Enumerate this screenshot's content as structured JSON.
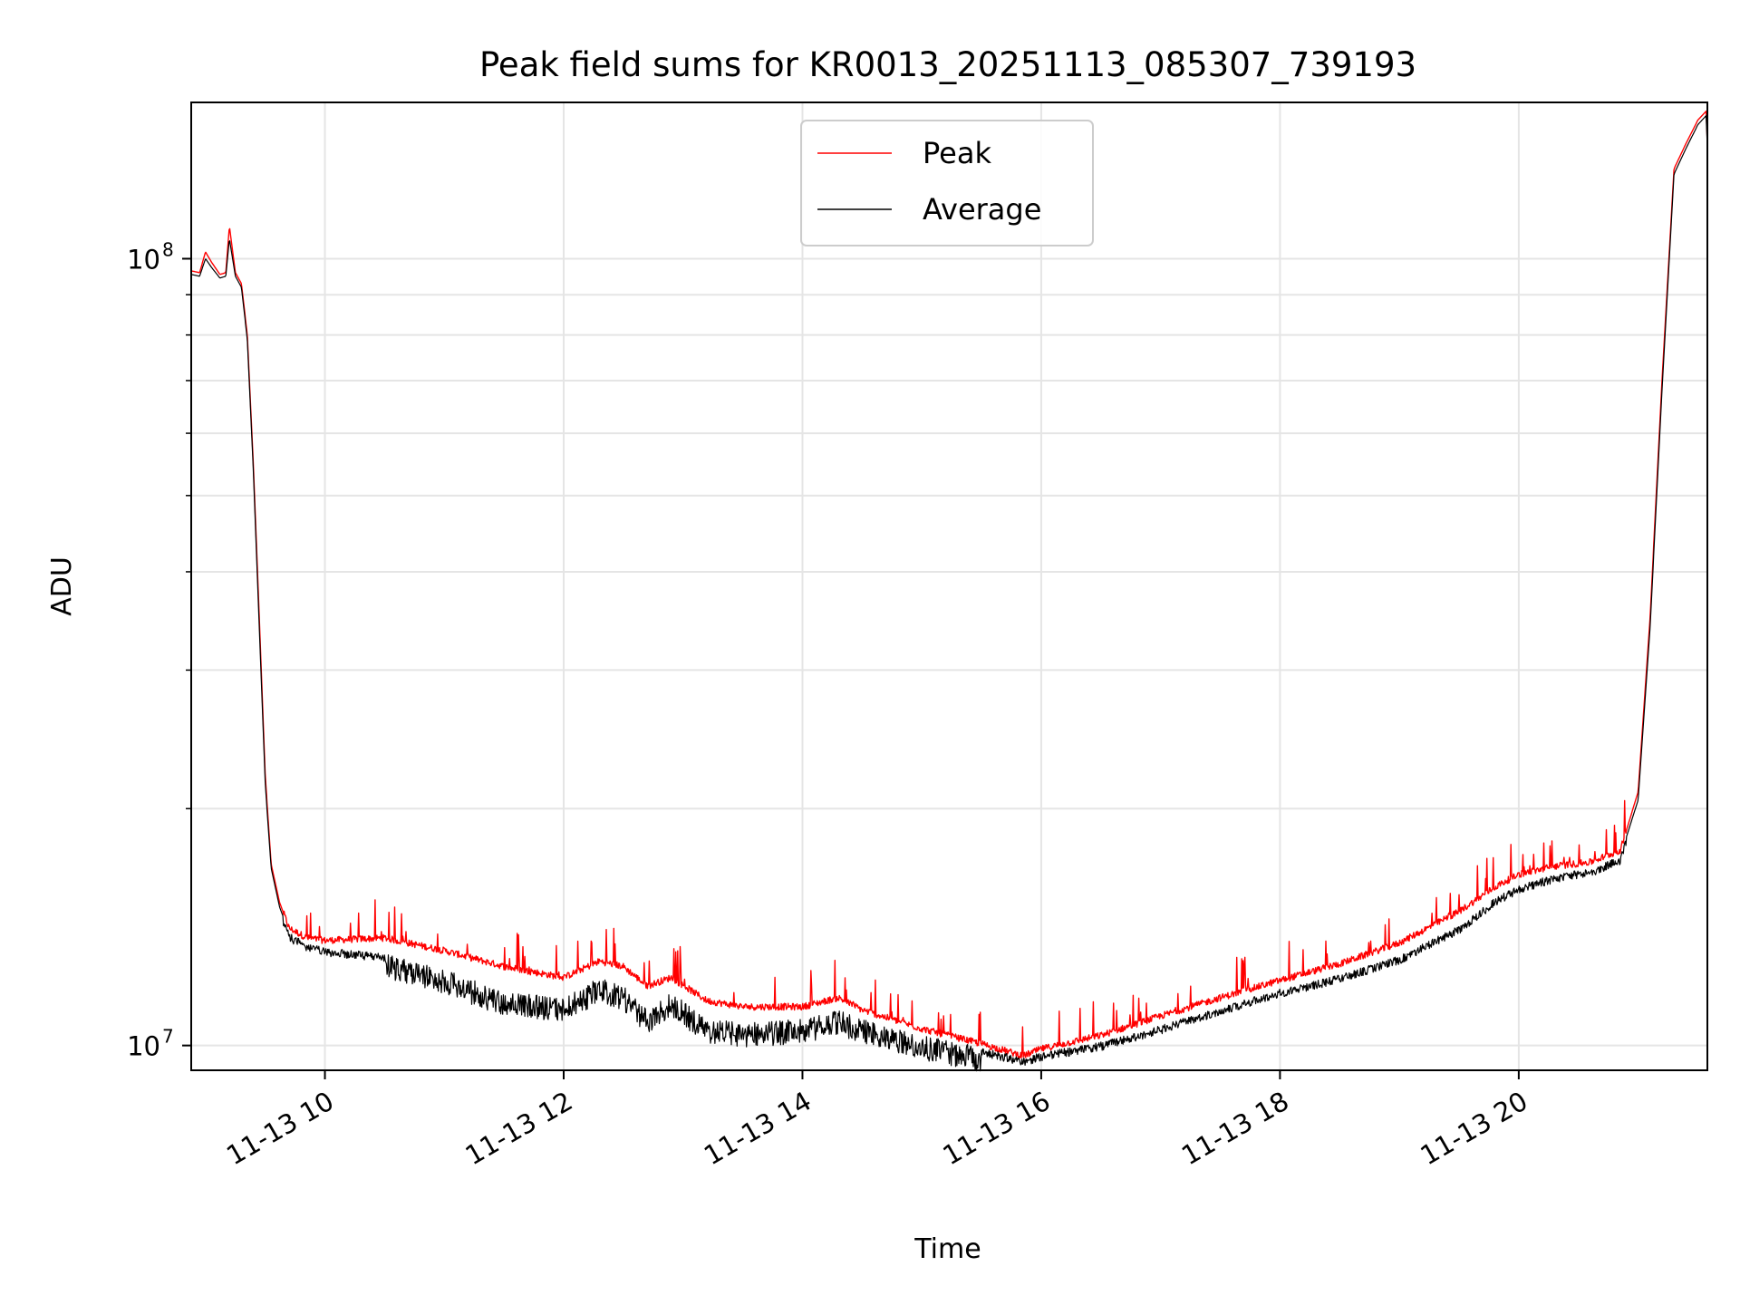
{
  "chart_data": {
    "type": "line",
    "title": "Peak field sums for KR0013_20251113_085307_739193",
    "xlabel": "Time",
    "ylabel": "ADU",
    "yscale": "log",
    "ylim": [
      9300000,
      158000000
    ],
    "xlim": [
      8.88,
      21.58
    ],
    "grid": true,
    "legend_position": "upper center",
    "x_ticks": [
      {
        "value": 10,
        "label": "11-13 10"
      },
      {
        "value": 12,
        "label": "11-13 12"
      },
      {
        "value": 14,
        "label": "11-13 14"
      },
      {
        "value": 16,
        "label": "11-13 16"
      },
      {
        "value": 18,
        "label": "11-13 18"
      },
      {
        "value": 20,
        "label": "11-13 20"
      }
    ],
    "y_ticks": [
      {
        "value": 10000000,
        "base": "10",
        "exp": "7"
      },
      {
        "value": 100000000,
        "base": "10",
        "exp": "8"
      }
    ],
    "series": [
      {
        "name": "Peak",
        "color": "#ff0000",
        "points": [
          [
            8.88,
            96500000
          ],
          [
            8.95,
            96000000
          ],
          [
            9.0,
            102000000
          ],
          [
            9.05,
            99000000
          ],
          [
            9.12,
            95500000
          ],
          [
            9.17,
            96000000
          ],
          [
            9.2,
            110000000
          ],
          [
            9.25,
            96000000
          ],
          [
            9.3,
            93000000
          ],
          [
            9.35,
            80000000
          ],
          [
            9.4,
            55000000
          ],
          [
            9.45,
            35000000
          ],
          [
            9.5,
            22000000
          ],
          [
            9.55,
            17000000
          ],
          [
            9.62,
            15200000
          ],
          [
            9.7,
            14100000
          ],
          [
            9.85,
            13700000
          ],
          [
            10.0,
            13600000
          ],
          [
            10.5,
            13700000
          ],
          [
            11.0,
            13200000
          ],
          [
            11.5,
            12600000
          ],
          [
            12.0,
            12200000
          ],
          [
            12.3,
            12800000
          ],
          [
            12.5,
            12600000
          ],
          [
            12.7,
            11900000
          ],
          [
            12.9,
            12200000
          ],
          [
            13.2,
            11400000
          ],
          [
            13.5,
            11200000
          ],
          [
            14.0,
            11200000
          ],
          [
            14.3,
            11500000
          ],
          [
            14.5,
            11100000
          ],
          [
            15.0,
            10500000
          ],
          [
            15.5,
            10050000
          ],
          [
            15.85,
            9700000
          ],
          [
            16.0,
            9900000
          ],
          [
            16.5,
            10300000
          ],
          [
            17.0,
            10900000
          ],
          [
            17.5,
            11500000
          ],
          [
            18.0,
            12100000
          ],
          [
            18.5,
            12700000
          ],
          [
            19.0,
            13500000
          ],
          [
            19.5,
            14800000
          ],
          [
            19.8,
            15900000
          ],
          [
            20.0,
            16500000
          ],
          [
            20.3,
            16900000
          ],
          [
            20.6,
            17100000
          ],
          [
            20.85,
            17700000
          ],
          [
            21.0,
            21000000
          ],
          [
            21.1,
            35000000
          ],
          [
            21.2,
            70000000
          ],
          [
            21.3,
            130000000
          ],
          [
            21.4,
            140000000
          ],
          [
            21.5,
            150000000
          ],
          [
            21.57,
            154000000
          ],
          [
            21.58,
            140000000
          ]
        ]
      },
      {
        "name": "Average",
        "color": "#000000",
        "points": [
          [
            8.88,
            95500000
          ],
          [
            8.95,
            95000000
          ],
          [
            9.0,
            100000000
          ],
          [
            9.05,
            97500000
          ],
          [
            9.12,
            94500000
          ],
          [
            9.17,
            95000000
          ],
          [
            9.2,
            106000000
          ],
          [
            9.25,
            95000000
          ],
          [
            9.3,
            92000000
          ],
          [
            9.35,
            79000000
          ],
          [
            9.4,
            54000000
          ],
          [
            9.45,
            34000000
          ],
          [
            9.5,
            21500000
          ],
          [
            9.55,
            16800000
          ],
          [
            9.62,
            15000000
          ],
          [
            9.7,
            13900000
          ],
          [
            9.85,
            13500000
          ],
          [
            10.0,
            13300000
          ],
          [
            10.5,
            13100000
          ],
          [
            11.0,
            12500000
          ],
          [
            11.5,
            11700000
          ],
          [
            12.0,
            11500000
          ],
          [
            12.3,
            12200000
          ],
          [
            12.5,
            11900000
          ],
          [
            12.7,
            11100000
          ],
          [
            12.9,
            11700000
          ],
          [
            13.2,
            10800000
          ],
          [
            13.5,
            10700000
          ],
          [
            14.0,
            10800000
          ],
          [
            14.3,
            11100000
          ],
          [
            14.5,
            10800000
          ],
          [
            15.0,
            10300000
          ],
          [
            15.5,
            9950000
          ],
          [
            15.85,
            9650000
          ],
          [
            16.0,
            9800000
          ],
          [
            16.5,
            10100000
          ],
          [
            17.0,
            10600000
          ],
          [
            17.5,
            11200000
          ],
          [
            18.0,
            11800000
          ],
          [
            18.5,
            12300000
          ],
          [
            19.0,
            13000000
          ],
          [
            19.5,
            14200000
          ],
          [
            19.8,
            15400000
          ],
          [
            20.0,
            16000000
          ],
          [
            20.3,
            16500000
          ],
          [
            20.6,
            16800000
          ],
          [
            20.85,
            17400000
          ],
          [
            21.0,
            20500000
          ],
          [
            21.1,
            34000000
          ],
          [
            21.2,
            68000000
          ],
          [
            21.3,
            128000000
          ],
          [
            21.4,
            138000000
          ],
          [
            21.5,
            148000000
          ],
          [
            21.57,
            152000000
          ],
          [
            21.58,
            138000000
          ]
        ]
      }
    ]
  }
}
